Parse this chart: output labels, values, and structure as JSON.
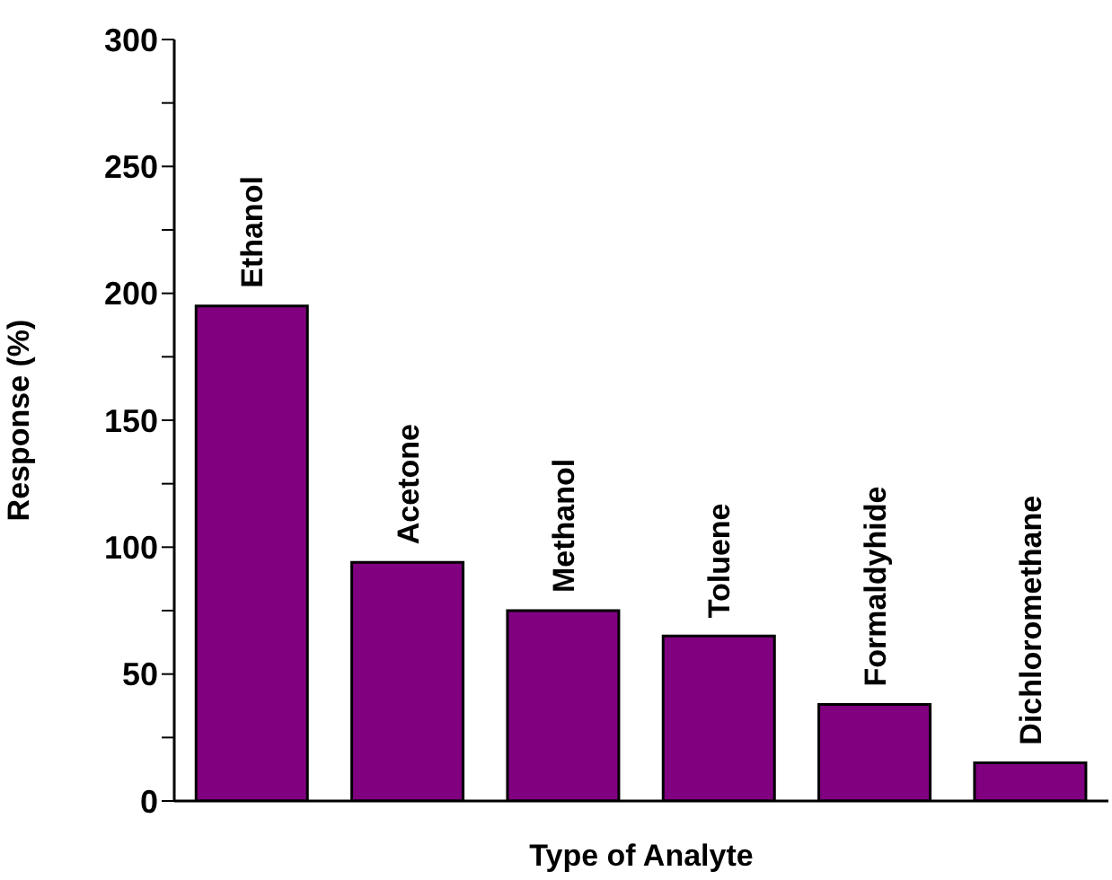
{
  "chart_data": {
    "type": "bar",
    "xlabel": "Type of Analyte",
    "ylabel": "Response (%)",
    "categories": [
      "Ethanol",
      "Acetone",
      "Methanol",
      "Toluene",
      "Formaldyhide",
      "Dichloromethane"
    ],
    "values": [
      195,
      94,
      75,
      65,
      38,
      15
    ],
    "color": "#800080",
    "ylim": [
      0,
      300
    ],
    "yticks": [
      0,
      {
        "value": 25,
        "label": null
      },
      50,
      {
        "value": 75,
        "label": null
      },
      100,
      {
        "value": 125,
        "label": null
      },
      150,
      {
        "value": 175,
        "label": null
      },
      200,
      {
        "value": 225,
        "label": null
      },
      250,
      {
        "value": 275,
        "label": null
      },
      300
    ],
    "tick_labels": "y",
    "grid": false,
    "legend": false
  }
}
